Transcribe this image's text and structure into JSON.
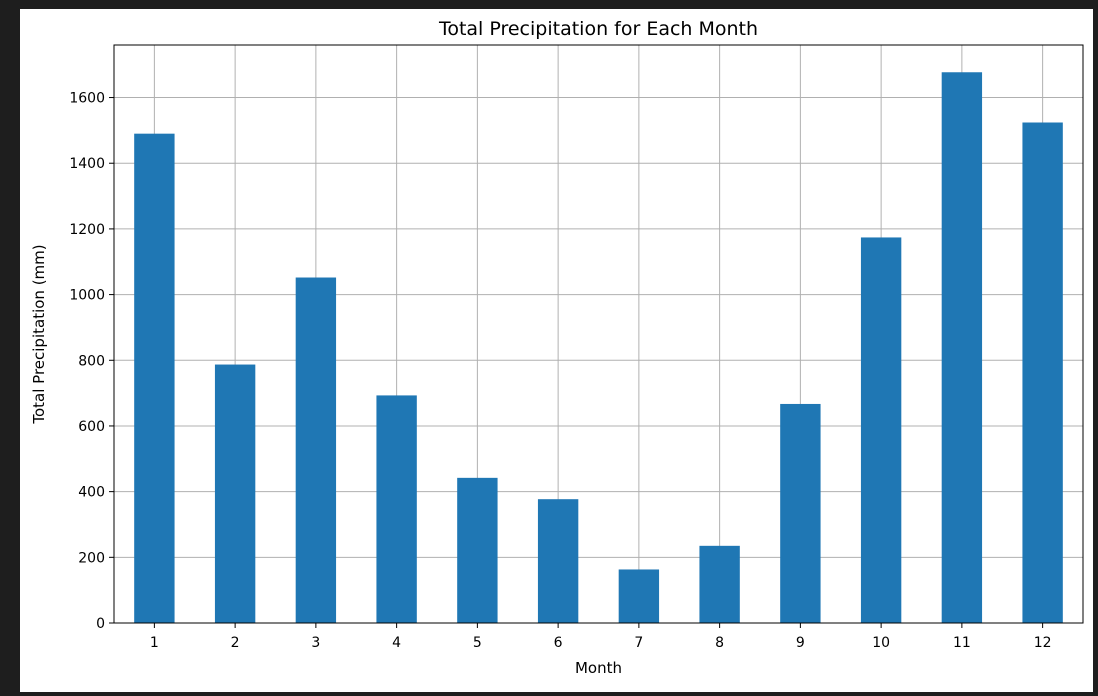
{
  "chart_data": {
    "type": "bar",
    "title": "Total Precipitation for Each Month",
    "xlabel": "Month",
    "ylabel": "Total Precipitation (mm)",
    "categories": [
      "1",
      "2",
      "3",
      "4",
      "5",
      "6",
      "7",
      "8",
      "9",
      "10",
      "11",
      "12"
    ],
    "values": [
      1490,
      787,
      1052,
      693,
      442,
      377,
      163,
      235,
      667,
      1174,
      1677,
      1524
    ],
    "ylim": [
      0,
      1760
    ],
    "yticks": [
      0,
      200,
      400,
      600,
      800,
      1000,
      1200,
      1400,
      1600
    ],
    "grid": true,
    "bar_color": "#1f77b4"
  }
}
